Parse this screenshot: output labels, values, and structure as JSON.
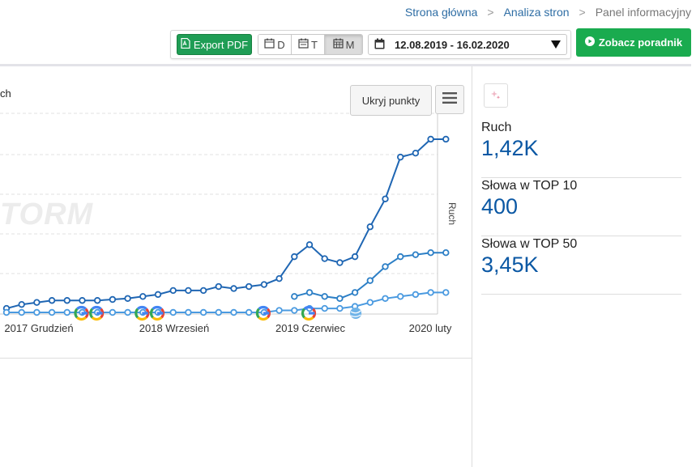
{
  "breadcrumb": {
    "home": "Strona główna",
    "analysis": "Analiza stron",
    "current": "Panel informacyjny",
    "sep": ">"
  },
  "toolbar": {
    "export_pdf": "Export PDF",
    "period_day": "D",
    "period_week": "T",
    "period_month": "M",
    "date_range": "12.08.2019 - 16.02.2020",
    "guide_button": "Zobacz poradnik"
  },
  "chart": {
    "legend_fragment": "ch",
    "hide_points": "Ukryj punkty",
    "right_axis_label": "Ruch",
    "watermark": "TORM"
  },
  "stats": [
    {
      "label": "Ruch",
      "value": "1,42K"
    },
    {
      "label": "Słowa w TOP 10",
      "value": "400"
    },
    {
      "label": "Słowa w TOP 50",
      "value": "3,45K"
    }
  ],
  "icons": {
    "pdf": "file-pdf-icon",
    "calendar": "calendar-icon",
    "menu": "hamburger-icon",
    "play": "play-circle-icon",
    "ai": "sparkle-icon",
    "google": "google-update-icon"
  },
  "colors": {
    "series_traffic": "#1f66b3",
    "series_top10": "#2c7fc6",
    "series_top50": "#4a9ae0",
    "accent_green": "#1aab4f",
    "value_blue": "#0b58a4"
  },
  "chart_data": {
    "type": "line",
    "x_ticks": [
      "2017 Grudzień",
      "2018 Wrzesień",
      "2019 Czerwiec",
      "2020 luty"
    ],
    "y_right_label": "Ruch",
    "grid": true,
    "series": [
      {
        "name": "Ruch",
        "values": [
          0.02,
          0.04,
          0.05,
          0.06,
          0.06,
          0.06,
          0.06,
          0.065,
          0.07,
          0.08,
          0.09,
          0.11,
          0.11,
          0.11,
          0.13,
          0.12,
          0.13,
          0.14,
          0.17,
          0.28,
          0.34,
          0.27,
          0.25,
          0.28,
          0.43,
          0.57,
          0.78,
          0.8,
          0.87,
          0.87
        ]
      },
      {
        "name": "Słowa w TOP 10",
        "values": [
          null,
          null,
          null,
          null,
          null,
          null,
          null,
          null,
          null,
          null,
          null,
          null,
          null,
          null,
          null,
          null,
          null,
          null,
          null,
          0.08,
          0.1,
          0.08,
          0.07,
          0.1,
          0.16,
          0.23,
          0.28,
          0.29,
          0.3,
          0.3
        ]
      },
      {
        "name": "Słowa w TOP 50",
        "values": [
          0.0,
          0.0,
          0.0,
          0.0,
          0.0,
          0.0,
          0.0,
          0.0,
          0.0,
          0.0,
          0.0,
          0.0,
          0.0,
          0.0,
          0.0,
          0.0,
          0.0,
          0.0,
          0.01,
          0.01,
          0.02,
          0.02,
          0.02,
          0.03,
          0.05,
          0.07,
          0.08,
          0.09,
          0.1,
          0.1
        ]
      }
    ],
    "events": [
      5,
      6,
      9,
      10,
      17,
      20
    ]
  }
}
